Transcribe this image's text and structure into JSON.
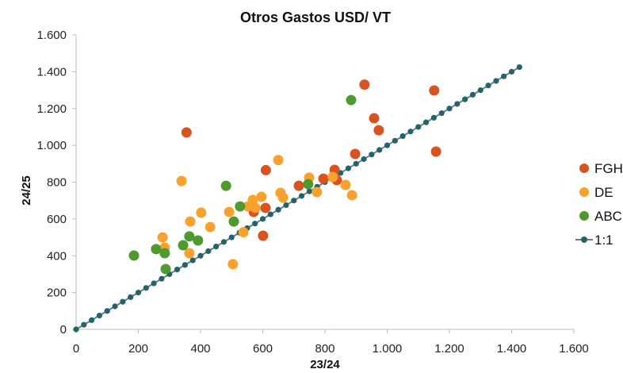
{
  "chart_data": {
    "type": "scatter",
    "title": "Otros Gastos USD/ VT",
    "xlabel": "23/24",
    "ylabel": "24/25",
    "xlim": [
      0,
      1600
    ],
    "ylim": [
      0,
      1600
    ],
    "xticks": [
      0,
      200,
      400,
      600,
      800,
      1000,
      1200,
      1400,
      1600
    ],
    "yticks": [
      0,
      200,
      400,
      600,
      800,
      1000,
      1200,
      1400,
      1600
    ],
    "xtick_labels": [
      "0",
      "200",
      "400",
      "600",
      "800",
      "1.000",
      "1.200",
      "1.400",
      "1.600"
    ],
    "ytick_labels": [
      "0",
      "200",
      "400",
      "600",
      "800",
      "1.000",
      "1.200",
      "1.400",
      "1.600"
    ],
    "grid": false,
    "legend_position": "right",
    "series": [
      {
        "name": "FGH",
        "color": "#d9531e",
        "points": [
          [
            355,
            1070
          ],
          [
            610,
            865
          ],
          [
            897,
            953
          ],
          [
            831,
            867
          ],
          [
            795,
            819
          ],
          [
            838,
            811
          ],
          [
            716,
            780
          ],
          [
            571,
            638
          ],
          [
            609,
            660
          ],
          [
            601,
            509
          ],
          [
            927,
            1330
          ],
          [
            958,
            1147
          ],
          [
            973,
            1082
          ],
          [
            1151,
            1298
          ],
          [
            1157,
            966
          ]
        ]
      },
      {
        "name": "DE",
        "color": "#f9a12c",
        "points": [
          [
            339,
            806
          ],
          [
            650,
            920
          ],
          [
            402,
            634
          ],
          [
            367,
            586
          ],
          [
            431,
            556
          ],
          [
            278,
            500
          ],
          [
            285,
            444
          ],
          [
            364,
            414
          ],
          [
            492,
            638
          ],
          [
            504,
            354
          ],
          [
            538,
            528
          ],
          [
            568,
            703
          ],
          [
            596,
            720
          ],
          [
            553,
            668
          ],
          [
            576,
            660
          ],
          [
            657,
            742
          ],
          [
            665,
            716
          ],
          [
            749,
            824
          ],
          [
            774,
            746
          ],
          [
            825,
            828
          ],
          [
            866,
            785
          ],
          [
            887,
            729
          ]
        ]
      },
      {
        "name": "ABC",
        "color": "#4e9a2e",
        "points": [
          [
            186,
            401
          ],
          [
            257,
            436
          ],
          [
            285,
            414
          ],
          [
            288,
            328
          ],
          [
            344,
            457
          ],
          [
            364,
            505
          ],
          [
            392,
            483
          ],
          [
            482,
            780
          ],
          [
            507,
            586
          ],
          [
            527,
            668
          ],
          [
            746,
            789
          ],
          [
            884,
            1246
          ]
        ]
      }
    ],
    "reference_line": {
      "name": "1:1",
      "color": "#1f6470",
      "line_color": "#7a7a7a",
      "from": 0,
      "to": 1425,
      "marker_step": 25
    }
  }
}
